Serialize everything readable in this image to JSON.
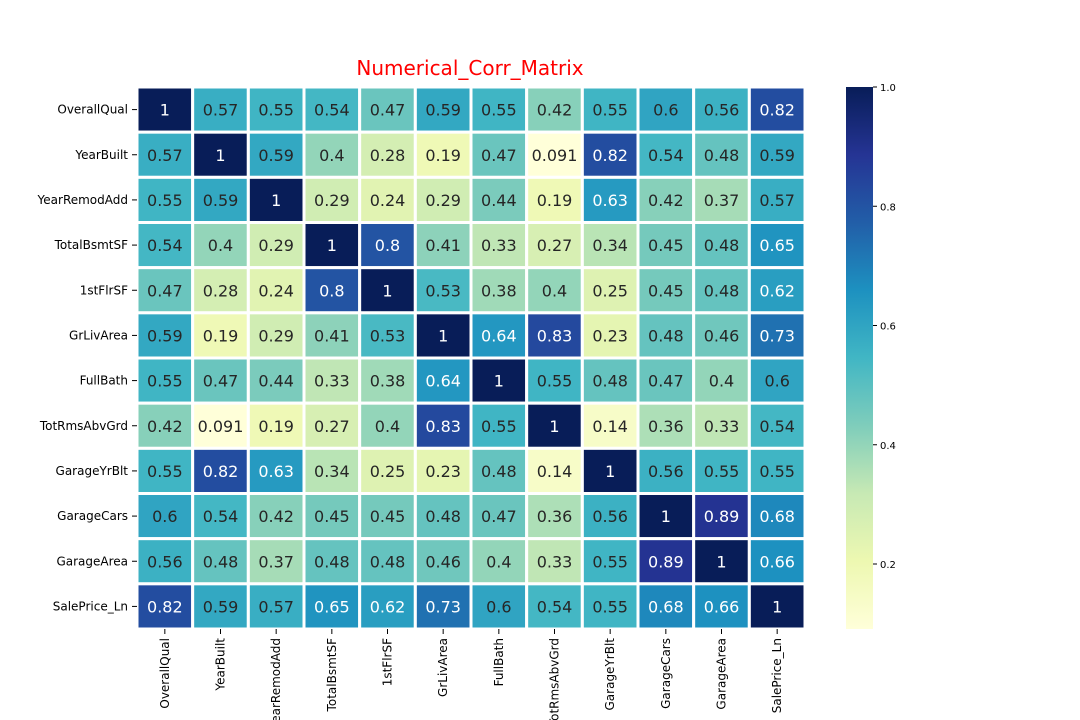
{
  "chart_data": {
    "type": "heatmap",
    "title": "Numerical_Corr_Matrix",
    "title_color": "#ff0000",
    "colormap": "YlGnBu",
    "colormap_stops": [
      "#ffffd9",
      "#edf8b1",
      "#c7e9b4",
      "#7fcdbb",
      "#41b6c4",
      "#1d91c0",
      "#225ea8",
      "#253494",
      "#081d58"
    ],
    "variables": [
      "OverallQual",
      "YearBuilt",
      "YearRemodAdd",
      "TotalBsmtSF",
      "1stFlrSF",
      "GrLivArea",
      "FullBath",
      "TotRmsAbvGrd",
      "GarageYrBlt",
      "GarageCars",
      "GarageArea",
      "SalePrice_Ln"
    ],
    "x_tick_labels": [
      "OverallQual",
      "YearBuilt",
      "YearRemodAdd",
      "TotalBsmtSF",
      "1stFlrSF",
      "GrLivArea",
      "FullBath",
      "TotRmsAbvGrd",
      "GarageYrBlt",
      "GarageCars",
      "GarageArea",
      "SalePrice_Ln"
    ],
    "values": [
      [
        1,
        0.57,
        0.55,
        0.54,
        0.47,
        0.59,
        0.55,
        0.42,
        0.55,
        0.6,
        0.56,
        0.82
      ],
      [
        0.57,
        1,
        0.59,
        0.4,
        0.28,
        0.19,
        0.47,
        0.091,
        0.82,
        0.54,
        0.48,
        0.59
      ],
      [
        0.55,
        0.59,
        1,
        0.29,
        0.24,
        0.29,
        0.44,
        0.19,
        0.63,
        0.42,
        0.37,
        0.57
      ],
      [
        0.54,
        0.4,
        0.29,
        1,
        0.8,
        0.41,
        0.33,
        0.27,
        0.34,
        0.45,
        0.48,
        0.65
      ],
      [
        0.47,
        0.28,
        0.24,
        0.8,
        1,
        0.53,
        0.38,
        0.4,
        0.25,
        0.45,
        0.48,
        0.62
      ],
      [
        0.59,
        0.19,
        0.29,
        0.41,
        0.53,
        1,
        0.64,
        0.83,
        0.23,
        0.48,
        0.46,
        0.73
      ],
      [
        0.55,
        0.47,
        0.44,
        0.33,
        0.38,
        0.64,
        1,
        0.55,
        0.48,
        0.47,
        0.4,
        0.6
      ],
      [
        0.42,
        0.091,
        0.19,
        0.27,
        0.4,
        0.83,
        0.55,
        1,
        0.14,
        0.36,
        0.33,
        0.54
      ],
      [
        0.55,
        0.82,
        0.63,
        0.34,
        0.25,
        0.23,
        0.48,
        0.14,
        1,
        0.56,
        0.55,
        0.55
      ],
      [
        0.6,
        0.54,
        0.42,
        0.45,
        0.45,
        0.48,
        0.47,
        0.36,
        0.56,
        1,
        0.89,
        0.68
      ],
      [
        0.56,
        0.48,
        0.37,
        0.48,
        0.48,
        0.46,
        0.4,
        0.33,
        0.55,
        0.89,
        1,
        0.66
      ],
      [
        0.82,
        0.59,
        0.57,
        0.65,
        0.62,
        0.73,
        0.6,
        0.54,
        0.55,
        0.68,
        0.66,
        1
      ]
    ],
    "value_range": [
      0.091,
      1.0
    ],
    "colorbar_ticks": [
      "0.2",
      "0.4",
      "0.6",
      "0.8",
      "1.0"
    ],
    "colorbar_tick_values": [
      0.2,
      0.4,
      0.6,
      0.8,
      1.0
    ],
    "annotations": true,
    "xlabel": "",
    "ylabel": ""
  }
}
